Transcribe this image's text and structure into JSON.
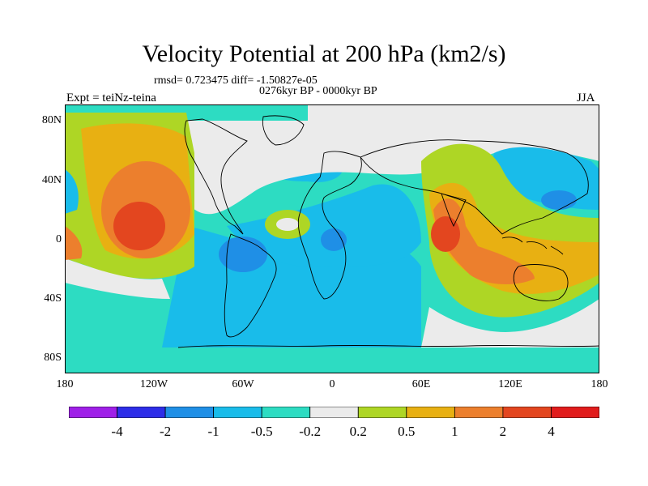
{
  "title": "Velocity Potential at 200 hPa (km2/s)",
  "stats_line": "rmsd= 0.723475 diff= -1.50827e-05",
  "period_line": "0276kyr BP - 0000kyr BP",
  "experiment_label": "Expt = teiNz-teina",
  "season_label": "JJA",
  "latitude_ticks": [
    "80N",
    "40N",
    "0",
    "40S",
    "80S"
  ],
  "longitude_ticks": [
    "180",
    "120W",
    "60W",
    "0",
    "60E",
    "120E",
    "180"
  ],
  "colorbar": {
    "colors": [
      "#9f1fe8",
      "#2d2de8",
      "#1f8fe6",
      "#19bcea",
      "#2ddcc2",
      "#ebebeb",
      "#aed625",
      "#e8b012",
      "#ec7f2d",
      "#e3461f",
      "#e11c1c"
    ],
    "labels": [
      "-4",
      "-2",
      "-1",
      "-0.5",
      "-0.2",
      "0.2",
      "0.5",
      "1",
      "2",
      "4"
    ]
  }
}
